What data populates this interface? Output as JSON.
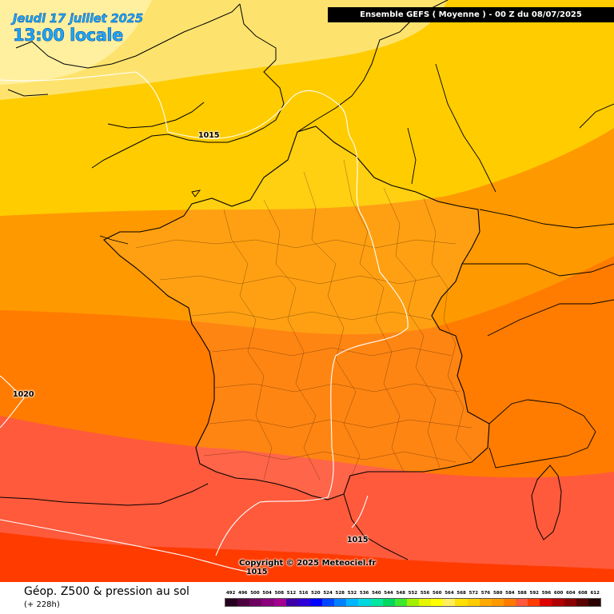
{
  "map": {
    "date_label": "Jeudi 17 juillet 2025",
    "time_label": "13:00 locale",
    "run_header": "Ensemble GEFS  ( Moyenne )  -  00 Z du 08/07/2025",
    "copyright": "Copyright © 2025 Meteociel.fr",
    "isobar_labels": [
      "1015",
      "1020",
      "1015",
      "1015"
    ],
    "colors": {
      "z_560": "#fde36e",
      "z_572": "#ffcc00",
      "z_576": "#ff9900",
      "z_580": "#ff7c00",
      "z_584": "#ff5a3c",
      "z_588": "#ff3b00",
      "z_556": "#fff0a0",
      "isobar": "#ffffff",
      "coast": "#000000"
    }
  },
  "footer": {
    "title": "Géop. Z500 & pression au sol",
    "subtitle": "(+ 228h)"
  },
  "legend": {
    "labels": [
      "492",
      "496",
      "500",
      "504",
      "508",
      "512",
      "516",
      "520",
      "524",
      "528",
      "532",
      "536",
      "540",
      "544",
      "548",
      "552",
      "556",
      "560",
      "564",
      "568",
      "572",
      "576",
      "580",
      "584",
      "588",
      "592",
      "596",
      "600",
      "604",
      "608",
      "612"
    ],
    "colors": [
      "#27001f",
      "#4d0040",
      "#6b005e",
      "#8a007d",
      "#a3008f",
      "#3d00a8",
      "#2d00d8",
      "#0000ff",
      "#0045ff",
      "#0080ff",
      "#00b5ff",
      "#00d8e0",
      "#00e8a0",
      "#00d860",
      "#3ce830",
      "#a0f000",
      "#e8f500",
      "#ffff00",
      "#ffef60",
      "#ffe000",
      "#ffcc00",
      "#ffaa00",
      "#ff9900",
      "#ff7c00",
      "#ff5a3c",
      "#ff3b00",
      "#e00000",
      "#b00000",
      "#8a0000",
      "#5a0000",
      "#2a0000"
    ]
  }
}
